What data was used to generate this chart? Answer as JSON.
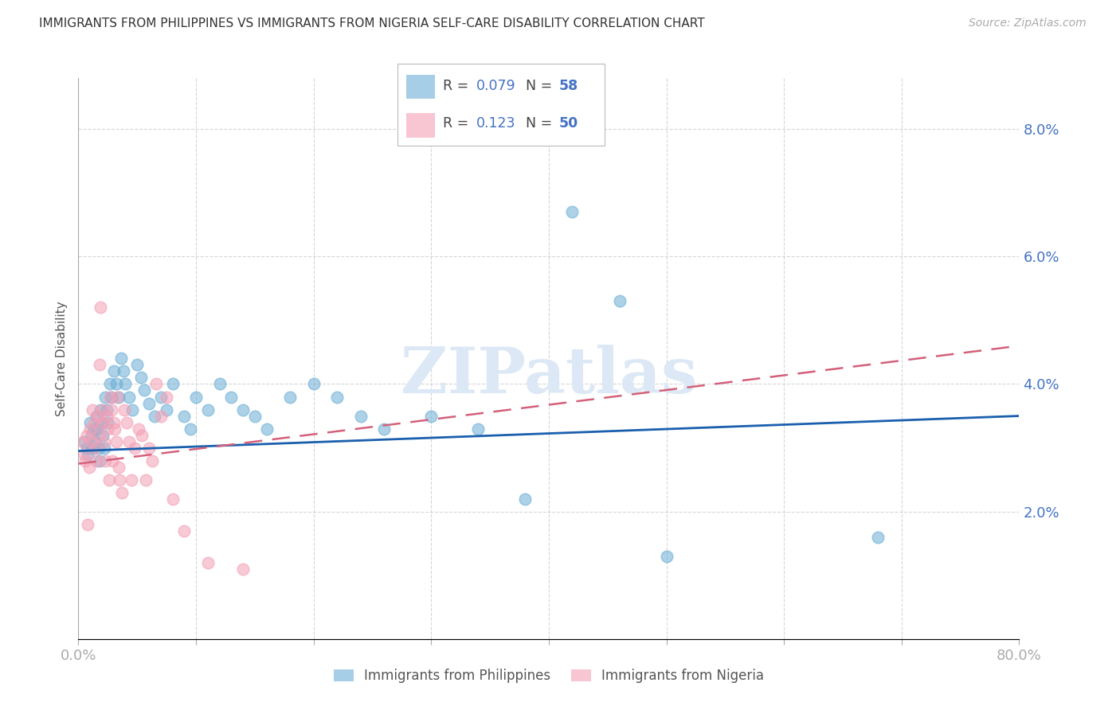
{
  "title": "IMMIGRANTS FROM PHILIPPINES VS IMMIGRANTS FROM NIGERIA SELF-CARE DISABILITY CORRELATION CHART",
  "source": "Source: ZipAtlas.com",
  "ylabel": "Self-Care Disability",
  "right_yticks": [
    0.0,
    0.02,
    0.04,
    0.06,
    0.08
  ],
  "xmin": 0.0,
  "xmax": 0.8,
  "ymin": 0.0,
  "ymax": 0.088,
  "watermark": "ZIPatlas",
  "philippines_color": "#6baed6",
  "nigeria_color": "#f4a0b5",
  "philippines_R": 0.079,
  "philippines_N": 58,
  "nigeria_R": 0.123,
  "nigeria_N": 50,
  "legend_label_philippines": "Immigrants from Philippines",
  "legend_label_nigeria": "Immigrants from Nigeria",
  "philippines_x": [
    0.005,
    0.007,
    0.008,
    0.01,
    0.011,
    0.012,
    0.013,
    0.014,
    0.015,
    0.016,
    0.017,
    0.018,
    0.019,
    0.02,
    0.021,
    0.022,
    0.023,
    0.024,
    0.025,
    0.027,
    0.028,
    0.03,
    0.032,
    0.034,
    0.036,
    0.038,
    0.04,
    0.043,
    0.046,
    0.05,
    0.053,
    0.056,
    0.06,
    0.065,
    0.07,
    0.075,
    0.08,
    0.09,
    0.095,
    0.1,
    0.11,
    0.12,
    0.13,
    0.14,
    0.15,
    0.16,
    0.18,
    0.2,
    0.22,
    0.24,
    0.26,
    0.3,
    0.34,
    0.38,
    0.42,
    0.46,
    0.5,
    0.68
  ],
  "philippines_y": [
    0.031,
    0.03,
    0.029,
    0.034,
    0.032,
    0.03,
    0.033,
    0.031,
    0.035,
    0.033,
    0.03,
    0.028,
    0.036,
    0.034,
    0.032,
    0.03,
    0.038,
    0.036,
    0.034,
    0.04,
    0.038,
    0.042,
    0.04,
    0.038,
    0.044,
    0.042,
    0.04,
    0.038,
    0.036,
    0.043,
    0.041,
    0.039,
    0.037,
    0.035,
    0.038,
    0.036,
    0.04,
    0.035,
    0.033,
    0.038,
    0.036,
    0.04,
    0.038,
    0.036,
    0.035,
    0.033,
    0.038,
    0.04,
    0.038,
    0.035,
    0.033,
    0.035,
    0.033,
    0.022,
    0.067,
    0.053,
    0.013,
    0.016
  ],
  "nigeria_x": [
    0.004,
    0.005,
    0.006,
    0.007,
    0.008,
    0.009,
    0.01,
    0.011,
    0.012,
    0.013,
    0.014,
    0.015,
    0.016,
    0.017,
    0.018,
    0.019,
    0.02,
    0.021,
    0.022,
    0.023,
    0.024,
    0.025,
    0.026,
    0.027,
    0.028,
    0.029,
    0.03,
    0.031,
    0.032,
    0.033,
    0.034,
    0.035,
    0.037,
    0.039,
    0.041,
    0.043,
    0.045,
    0.048,
    0.051,
    0.054,
    0.057,
    0.06,
    0.063,
    0.066,
    0.07,
    0.075,
    0.08,
    0.09,
    0.11,
    0.14
  ],
  "nigeria_y": [
    0.031,
    0.029,
    0.028,
    0.032,
    0.018,
    0.027,
    0.033,
    0.031,
    0.036,
    0.034,
    0.03,
    0.028,
    0.035,
    0.032,
    0.043,
    0.052,
    0.034,
    0.036,
    0.031,
    0.028,
    0.035,
    0.033,
    0.025,
    0.038,
    0.036,
    0.028,
    0.034,
    0.033,
    0.031,
    0.038,
    0.027,
    0.025,
    0.023,
    0.036,
    0.034,
    0.031,
    0.025,
    0.03,
    0.033,
    0.032,
    0.025,
    0.03,
    0.028,
    0.04,
    0.035,
    0.038,
    0.022,
    0.017,
    0.012,
    0.011
  ],
  "background_color": "#ffffff",
  "grid_color": "#cccccc",
  "title_color": "#333333",
  "axis_color": "#4472c4",
  "trend_blue_color": "#1a5fad",
  "trend_pink_color": "#d4607a"
}
